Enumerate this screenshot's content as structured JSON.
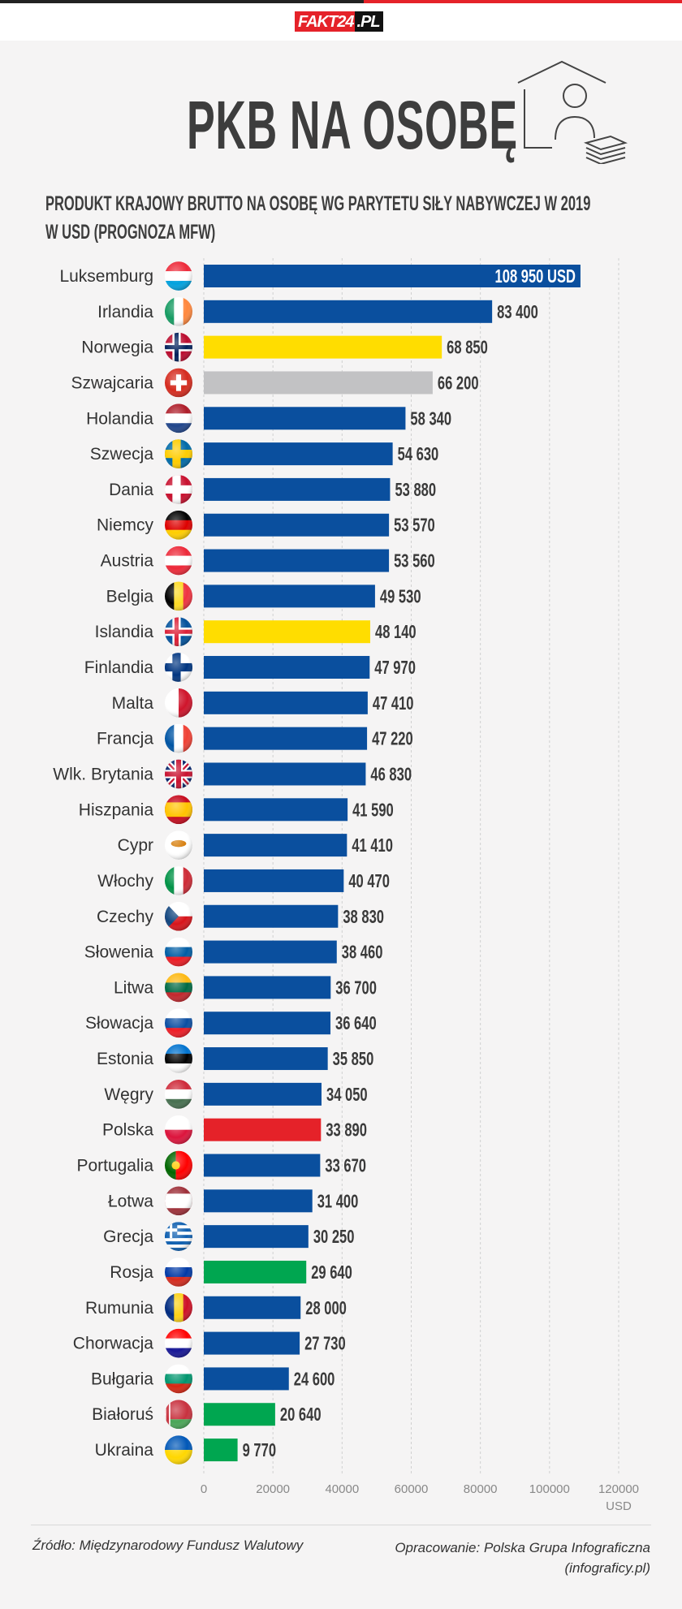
{
  "header": {
    "logo_text": "FAKT24",
    "logo_suffix": ".PL"
  },
  "title": "PKB NA OSOBĘ",
  "subtitle_line1": "PRODUKT KRAJOWY BRUTTO NA OSOBĘ WG PARYTETU SIŁY NABYWCZEJ W 2019",
  "subtitle_line2": "W USD (PROGNOZA MFW)",
  "footer": {
    "source": "Źródło: Międzynarodowy Fundusz Walutowy",
    "author_line1": "Opracowanie: Polska Grupa Infograficzna",
    "author_line2": "(infograficy.pl)"
  },
  "colors": {
    "blue": "#0a4f9e",
    "yellow": "#ffdd00",
    "grey": "#c2c2c4",
    "red": "#e52229",
    "green": "#00a650"
  },
  "chart_data": {
    "type": "bar",
    "orientation": "horizontal",
    "xlim": [
      0,
      120000
    ],
    "x_ticks": [
      "0",
      "20000",
      "40000",
      "60000",
      "80000",
      "100000",
      "120000"
    ],
    "x_unit": "USD",
    "grid": true,
    "first_label_suffix": " USD",
    "categories": [
      "Luksemburg",
      "Irlandia",
      "Norwegia",
      "Szwajcaria",
      "Holandia",
      "Szwecja",
      "Dania",
      "Niemcy",
      "Austria",
      "Belgia",
      "Islandia",
      "Finlandia",
      "Malta",
      "Francja",
      "Wlk. Brytania",
      "Hiszpania",
      "Cypr",
      "Włochy",
      "Czechy",
      "Słowenia",
      "Litwa",
      "Słowacja",
      "Estonia",
      "Węgry",
      "Polska",
      "Portugalia",
      "Łotwa",
      "Grecja",
      "Rosja",
      "Rumunia",
      "Chorwacja",
      "Bułgaria",
      "Białoruś",
      "Ukraina"
    ],
    "values": [
      108950,
      83400,
      68850,
      66200,
      58340,
      54630,
      53880,
      53570,
      53560,
      49530,
      48140,
      47970,
      47410,
      47220,
      46830,
      41590,
      41410,
      40470,
      38830,
      38460,
      36700,
      36640,
      35850,
      34050,
      33890,
      33670,
      31400,
      30250,
      29640,
      28000,
      27730,
      24600,
      20640,
      9770
    ],
    "value_labels": [
      "108 950",
      "83 400",
      "68 850",
      "66 200",
      "58 340",
      "54 630",
      "53 880",
      "53 570",
      "53 560",
      "49 530",
      "48 140",
      "47 970",
      "47 410",
      "47 220",
      "46 830",
      "41 590",
      "41 410",
      "40 470",
      "38 830",
      "38 460",
      "36 700",
      "36 640",
      "35 850",
      "34 050",
      "33 890",
      "33 670",
      "31 400",
      "30 250",
      "29 640",
      "28 000",
      "27 730",
      "24 600",
      "20 640",
      "9 770"
    ],
    "bar_colors": [
      "blue",
      "blue",
      "yellow",
      "grey",
      "blue",
      "blue",
      "blue",
      "blue",
      "blue",
      "blue",
      "yellow",
      "blue",
      "blue",
      "blue",
      "blue",
      "blue",
      "blue",
      "blue",
      "blue",
      "blue",
      "blue",
      "blue",
      "blue",
      "blue",
      "red",
      "blue",
      "blue",
      "blue",
      "green",
      "blue",
      "blue",
      "blue",
      "green",
      "green"
    ],
    "flags": [
      {
        "t": "h",
        "c": [
          "#ed2939",
          "#ffffff",
          "#00a1de"
        ]
      },
      {
        "t": "v",
        "c": [
          "#169b62",
          "#ffffff",
          "#ff883e"
        ]
      },
      {
        "t": "cross",
        "c": [
          "#ba0c2f",
          "#ffffff",
          "#00205b"
        ]
      },
      {
        "t": "swiss",
        "c": [
          "#d52b1e",
          "#ffffff"
        ]
      },
      {
        "t": "h",
        "c": [
          "#ae1c28",
          "#ffffff",
          "#21468b"
        ]
      },
      {
        "t": "cross",
        "c": [
          "#006aa7",
          "#fecc00",
          "#fecc00"
        ]
      },
      {
        "t": "cross",
        "c": [
          "#c8102e",
          "#ffffff",
          "#ffffff"
        ]
      },
      {
        "t": "h",
        "c": [
          "#000000",
          "#dd0000",
          "#ffce00"
        ]
      },
      {
        "t": "h",
        "c": [
          "#ed2939",
          "#ffffff",
          "#ed2939"
        ]
      },
      {
        "t": "v",
        "c": [
          "#000000",
          "#fdda24",
          "#ef3340"
        ]
      },
      {
        "t": "cross",
        "c": [
          "#02529c",
          "#ffffff",
          "#dc1e35"
        ]
      },
      {
        "t": "cross",
        "c": [
          "#ffffff",
          "#003580",
          "#003580"
        ]
      },
      {
        "t": "v2",
        "c": [
          "#ffffff",
          "#cf142b"
        ]
      },
      {
        "t": "v",
        "c": [
          "#0055a4",
          "#ffffff",
          "#ef4135"
        ]
      },
      {
        "t": "uk",
        "c": [
          "#012169",
          "#ffffff",
          "#c8102e"
        ]
      },
      {
        "t": "h3",
        "c": [
          "#c60b1e",
          "#ffc400",
          "#c60b1e"
        ]
      },
      {
        "t": "cyprus",
        "c": [
          "#ffffff",
          "#d57800"
        ]
      },
      {
        "t": "v",
        "c": [
          "#009246",
          "#ffffff",
          "#ce2b37"
        ]
      },
      {
        "t": "czech",
        "c": [
          "#ffffff",
          "#d7141a",
          "#11457e"
        ]
      },
      {
        "t": "h",
        "c": [
          "#ffffff",
          "#005da4",
          "#ed1c24"
        ]
      },
      {
        "t": "h",
        "c": [
          "#fdb913",
          "#006a44",
          "#c1272d"
        ]
      },
      {
        "t": "h",
        "c": [
          "#ffffff",
          "#0b4ea2",
          "#ee1c25"
        ]
      },
      {
        "t": "h",
        "c": [
          "#0072ce",
          "#000000",
          "#ffffff"
        ]
      },
      {
        "t": "h",
        "c": [
          "#ce2939",
          "#ffffff",
          "#477050"
        ]
      },
      {
        "t": "h2",
        "c": [
          "#ffffff",
          "#dc143c"
        ]
      },
      {
        "t": "v2p",
        "c": [
          "#006600",
          "#ff0000"
        ]
      },
      {
        "t": "h3",
        "c": [
          "#9e3039",
          "#ffffff",
          "#9e3039"
        ]
      },
      {
        "t": "greece",
        "c": [
          "#0d5eaf",
          "#ffffff"
        ]
      },
      {
        "t": "h",
        "c": [
          "#ffffff",
          "#0039a6",
          "#d52b1e"
        ]
      },
      {
        "t": "v",
        "c": [
          "#002b7f",
          "#fcd116",
          "#ce1126"
        ]
      },
      {
        "t": "h",
        "c": [
          "#ff0000",
          "#ffffff",
          "#171796"
        ]
      },
      {
        "t": "h",
        "c": [
          "#ffffff",
          "#00966e",
          "#d62612"
        ]
      },
      {
        "t": "belarus",
        "c": [
          "#c8313e",
          "#4aa657",
          "#ffffff"
        ]
      },
      {
        "t": "h2",
        "c": [
          "#0057b7",
          "#ffd700"
        ]
      }
    ]
  }
}
